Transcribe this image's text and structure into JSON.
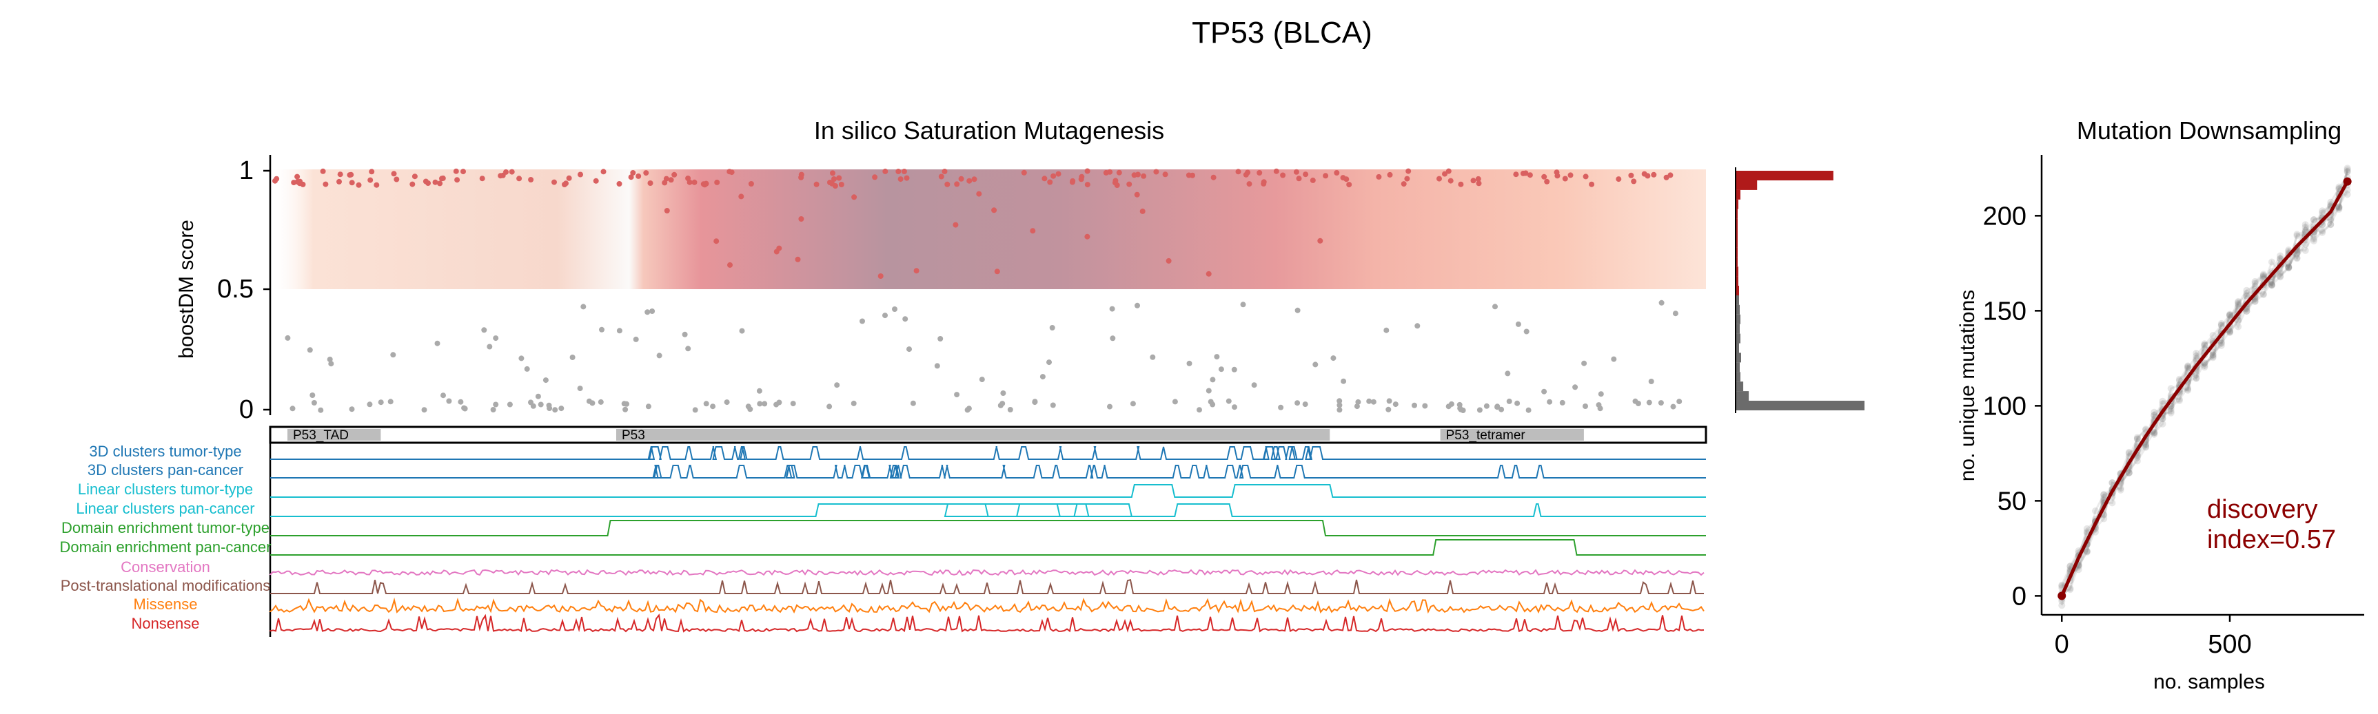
{
  "figure": {
    "title": "TP53 (BLCA)"
  },
  "chart_data": [
    {
      "type": "scatter",
      "title": "In silico Saturation Mutagenesis",
      "ylabel": "boostDM score",
      "xlabel": "",
      "ylim": [
        0,
        1.05
      ],
      "yticks": [
        "1",
        "0.5",
        "0"
      ],
      "threshold": 0.5,
      "colors": {
        "driver": "#d96060",
        "passenger": "#aaaaaa",
        "band": "#e8917f",
        "band_core": "#b89aa6"
      },
      "series": []
    },
    {
      "type": "bar",
      "orientation": "horizontal",
      "xlabel": "",
      "ylabel": "",
      "bins": [
        0.02,
        0.06,
        0.1,
        0.14,
        0.18,
        0.22,
        0.26,
        0.3,
        0.34,
        0.38,
        0.42,
        0.46,
        0.5,
        0.54,
        0.58,
        0.62,
        0.66,
        0.7,
        0.74,
        0.78,
        0.82,
        0.86,
        0.9,
        0.94,
        0.98
      ],
      "values": [
        185,
        18,
        10,
        6,
        5,
        7,
        4,
        6,
        5,
        6,
        5,
        4,
        4,
        3,
        3,
        2,
        2,
        2,
        2,
        2,
        2,
        3,
        6,
        30,
        140
      ],
      "colors": {
        "driver": "#b01a1a",
        "passenger": "#6b6b6b"
      }
    },
    {
      "type": "line",
      "title": "Mutation Downsampling",
      "xlabel": "no. samples",
      "ylabel": "no. unique mutations",
      "xlim": [
        -60,
        900
      ],
      "ylim": [
        -10,
        232
      ],
      "xticks": [
        "0",
        "500"
      ],
      "yticks": [
        "0",
        "50",
        "100",
        "150",
        "200"
      ],
      "series": [
        {
          "x": [
            0,
            50,
            100,
            150,
            200,
            250,
            300,
            350,
            400,
            450,
            500,
            550,
            600,
            650,
            700,
            750,
            800,
            850
          ],
          "y": [
            0,
            20,
            38,
            55,
            70,
            84,
            97,
            109,
            121,
            132,
            143,
            154,
            164,
            174,
            184,
            193,
            202,
            218
          ]
        }
      ],
      "annotation": "discovery\nindex=0.57",
      "colors": {
        "fit": "#8b0000",
        "samples": "#7a7a7a"
      }
    }
  ],
  "domains": [
    {
      "label": "P53_TAD",
      "start": 0.012,
      "end": 0.077
    },
    {
      "label": "P53",
      "start": 0.241,
      "end": 0.738
    },
    {
      "label": "P53_tetramer",
      "start": 0.815,
      "end": 0.915
    }
  ],
  "tracks": [
    {
      "label": "3D clusters tumor-type",
      "color": "#1f77b4"
    },
    {
      "label": "3D clusters pan-cancer",
      "color": "#1f77b4"
    },
    {
      "label": "Linear clusters tumor-type",
      "color": "#17becf"
    },
    {
      "label": "Linear clusters pan-cancer",
      "color": "#17becf"
    },
    {
      "label": "Domain enrichment tumor-type",
      "color": "#2ca02c"
    },
    {
      "label": "Domain enrichment pan-cancer",
      "color": "#2ca02c"
    },
    {
      "label": "Conservation",
      "color": "#e377c2"
    },
    {
      "label": "Post-translational modifications",
      "color": "#8c564b"
    },
    {
      "label": "Missense",
      "color": "#ff7f0e"
    },
    {
      "label": "Nonsense",
      "color": "#d62728"
    }
  ]
}
